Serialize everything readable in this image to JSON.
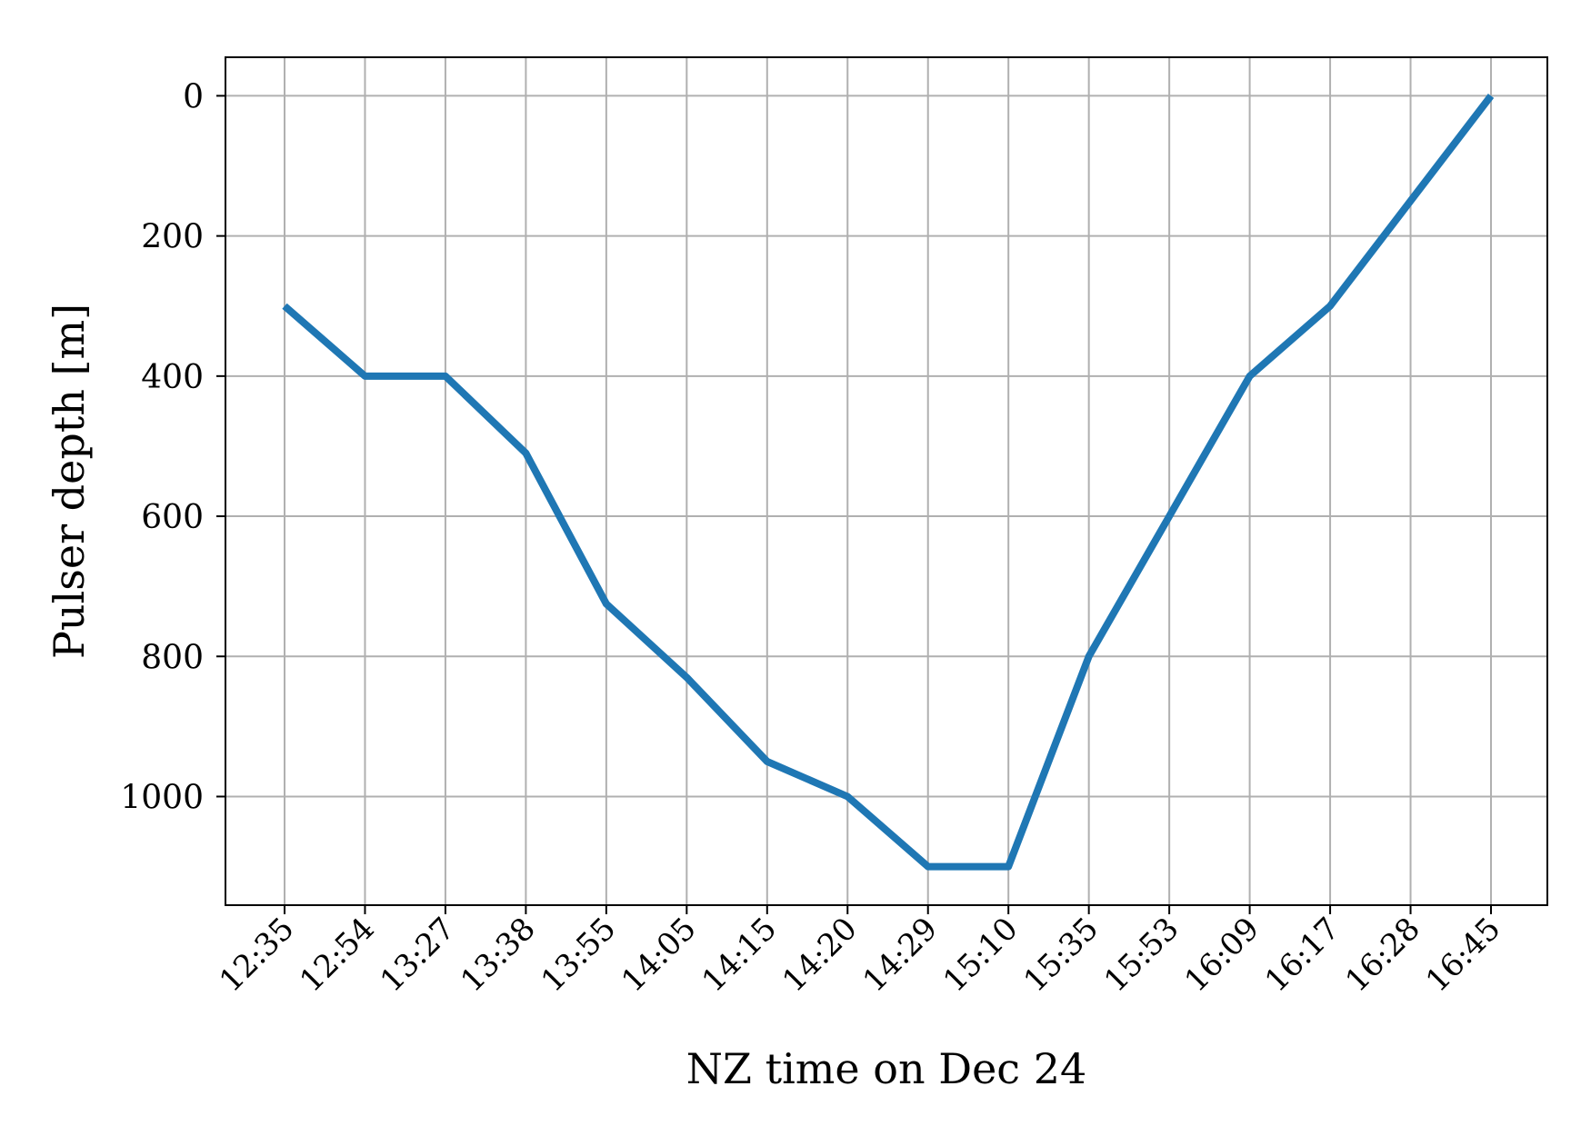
{
  "chart_data": {
    "type": "line",
    "xlabel": "NZ time on Dec 24",
    "ylabel": "Pulser depth [m]",
    "categories": [
      "12:35",
      "12:54",
      "13:27",
      "13:38",
      "13:55",
      "14:05",
      "14:15",
      "14:20",
      "14:29",
      "15:10",
      "15:35",
      "15:53",
      "16:09",
      "16:17",
      "16:28",
      "16:45"
    ],
    "series": [
      {
        "values": [
          300,
          400,
          400,
          510,
          725,
          830,
          950,
          1000,
          1100,
          1100,
          800,
          600,
          400,
          300,
          150,
          0
        ]
      }
    ],
    "ylim": [
      1155,
      -55
    ],
    "y_inverted": true,
    "yticks": [
      0,
      200,
      400,
      600,
      800,
      1000
    ],
    "grid": true,
    "line_color": "#1f77b4",
    "grid_color": "#b0b0b0"
  }
}
